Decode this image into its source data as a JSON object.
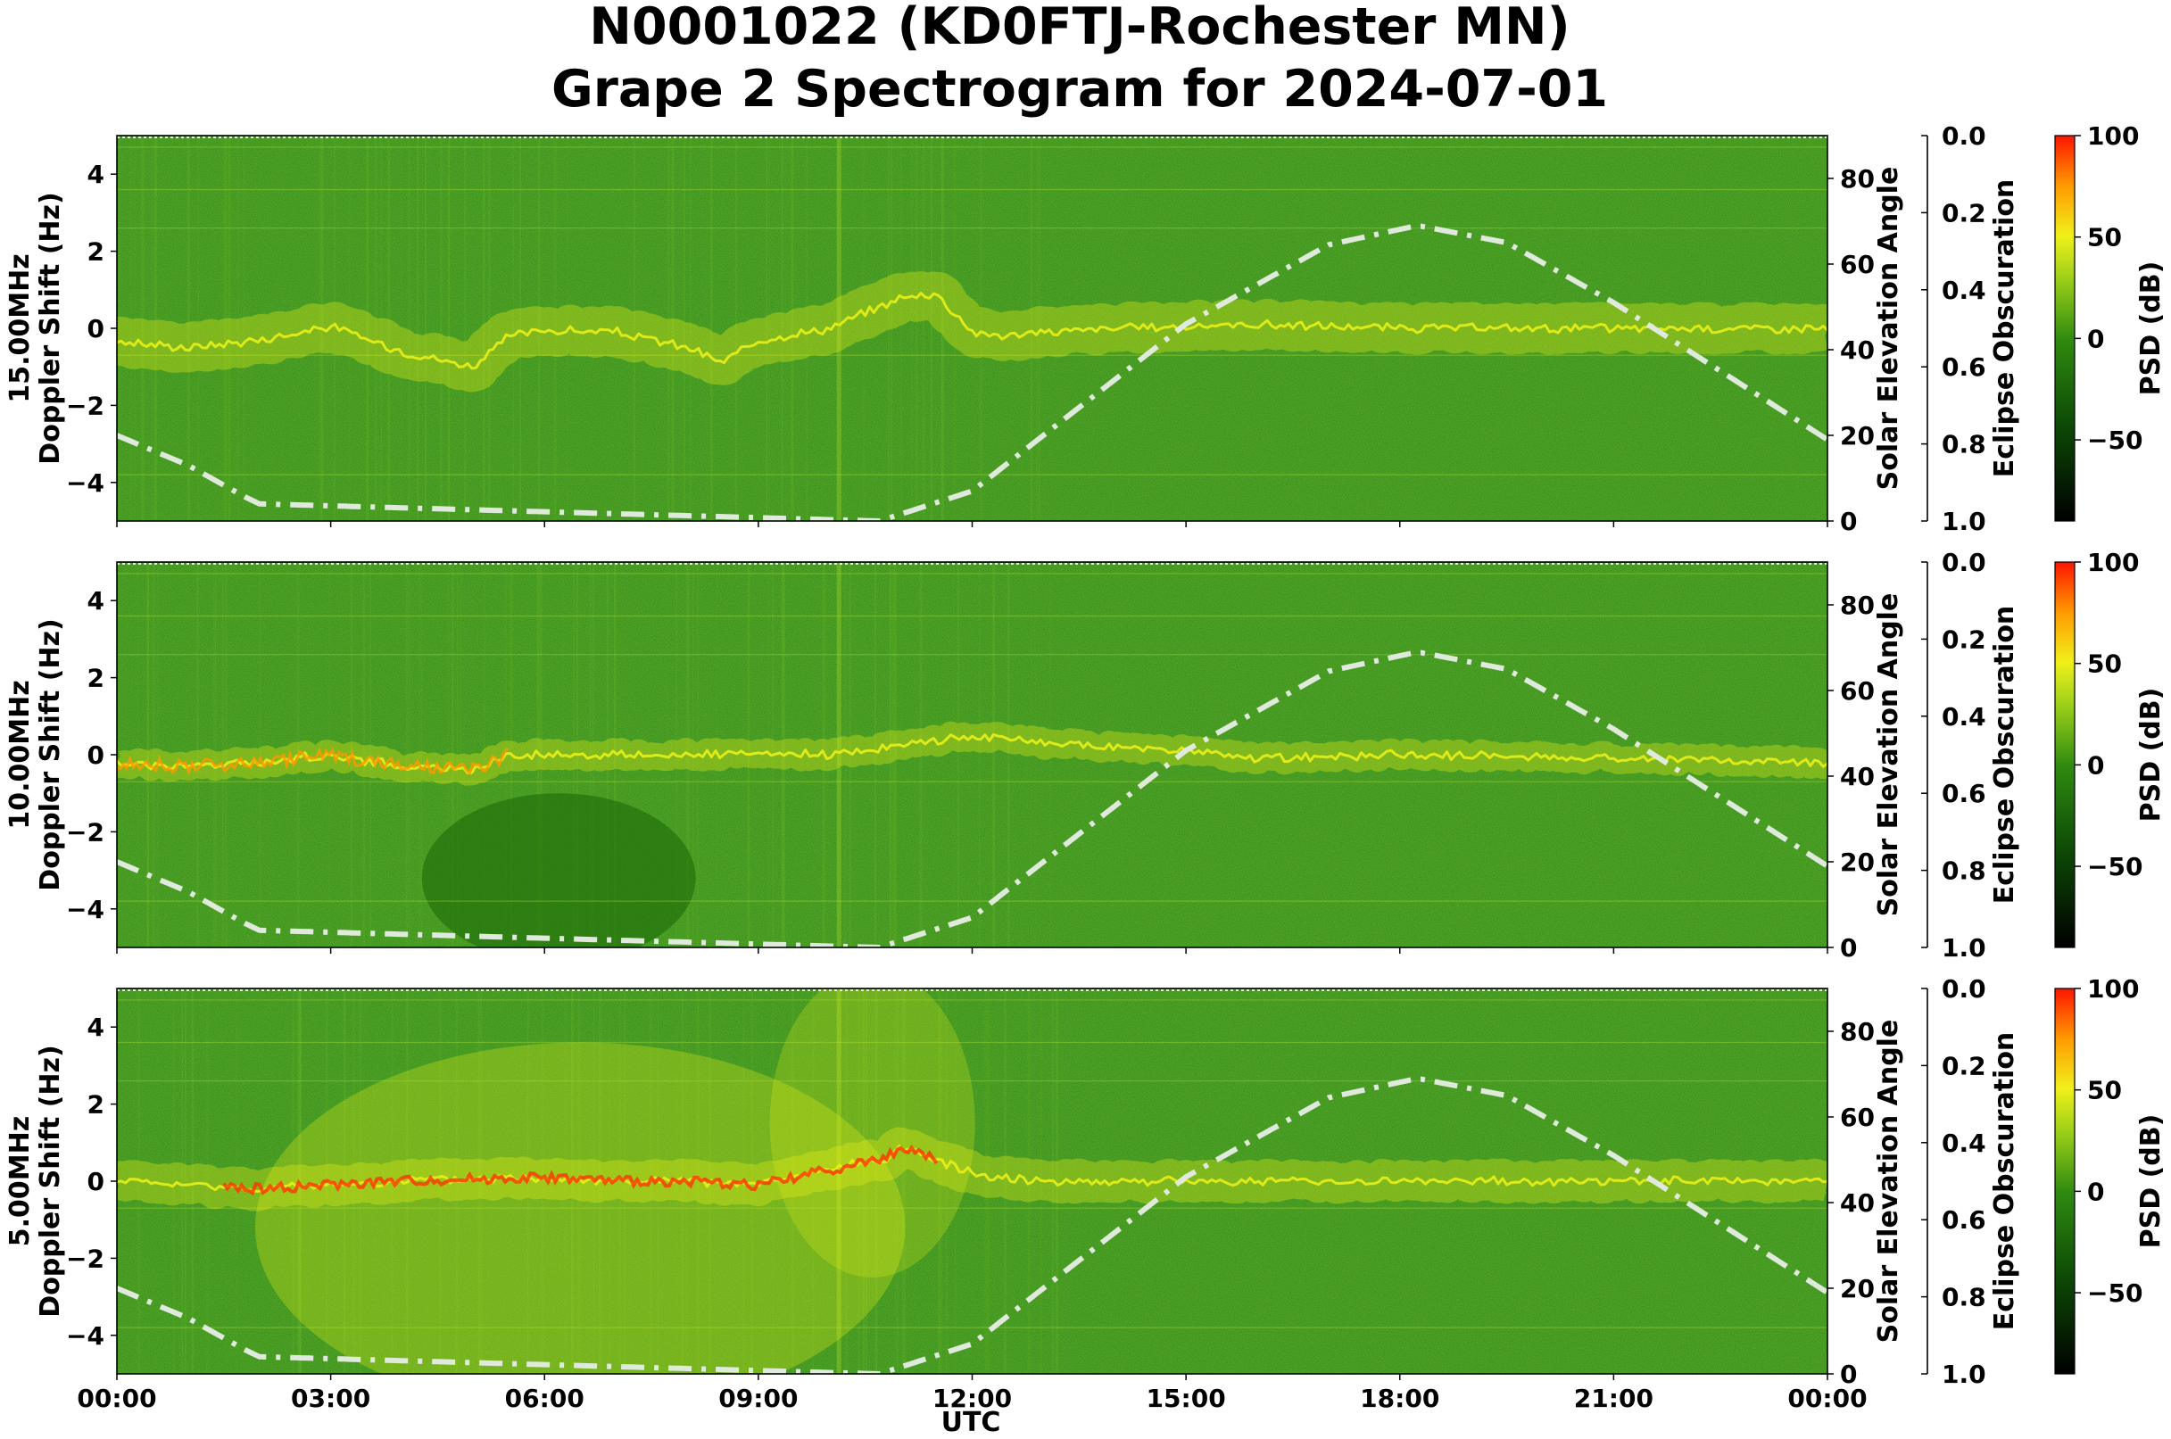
{
  "figure": {
    "title_line1": "N0001022 (KD0FTJ-Rochester MN)",
    "title_line2": "Grape 2 Spectrogram for 2024-07-01",
    "xlabel": "UTC"
  },
  "colors": {
    "background_green": "#2f8a10",
    "signal_yellow": "#e8ef18",
    "strong_red": "#ff3300",
    "solar_curve": "#dfe9dc"
  },
  "chart_data": [
    {
      "type": "heatmap",
      "panel": "15.00MHz",
      "ylabel_line1": "15.00MHz",
      "ylabel_line2": "Doppler Shift (Hz)",
      "xlim": [
        0,
        24
      ],
      "ylim": [
        -5,
        5
      ],
      "x_ticks": [
        "00:00",
        "03:00",
        "06:00",
        "09:00",
        "12:00",
        "15:00",
        "18:00",
        "21:00",
        "00:00"
      ],
      "y_ticks": [
        -4,
        -2,
        0,
        2,
        4
      ],
      "y2_label": "Solar Elevation Angle",
      "y2_ticks": [
        0,
        20,
        40,
        60,
        80
      ],
      "y2lim": [
        0,
        90
      ],
      "y3_label": "Eclipse Obscuration",
      "y3_ticks": [
        "0.0",
        "0.2",
        "0.4",
        "0.6",
        "0.8",
        "1.0"
      ],
      "colorbar_label": "PSD (dB)",
      "colorbar_ticks": [
        100,
        50,
        0,
        -50
      ],
      "clim": [
        -90,
        100
      ],
      "doppler_trace": [
        [
          0,
          -0.35
        ],
        [
          1,
          -0.5
        ],
        [
          2,
          -0.3
        ],
        [
          3,
          0.05
        ],
        [
          4,
          -0.6
        ],
        [
          5,
          -1.0
        ],
        [
          5.5,
          -0.2
        ],
        [
          6,
          -0.05
        ],
        [
          7,
          -0.1
        ],
        [
          8,
          -0.5
        ],
        [
          8.5,
          -0.9
        ],
        [
          9,
          -0.3
        ],
        [
          10,
          0
        ],
        [
          11,
          0.8
        ],
        [
          11.5,
          0.9
        ],
        [
          12,
          -0.1
        ],
        [
          12.5,
          -0.2
        ],
        [
          13,
          -0.1
        ],
        [
          14,
          0
        ],
        [
          16,
          0.1
        ],
        [
          18,
          0
        ],
        [
          24,
          0
        ]
      ],
      "trace_width_hz": 1.2,
      "solar_elevation": [
        [
          0,
          20
        ],
        [
          1,
          13
        ],
        [
          1.8,
          5.6
        ],
        [
          2,
          4
        ],
        [
          10.7,
          0
        ],
        [
          12,
          7
        ],
        [
          15,
          46
        ],
        [
          17,
          64.5
        ],
        [
          18.25,
          69
        ],
        [
          19.5,
          65
        ],
        [
          21,
          51
        ],
        [
          24,
          19
        ]
      ]
    },
    {
      "type": "heatmap",
      "panel": "10.00MHz",
      "ylabel_line1": "10.00MHz",
      "ylabel_line2": "Doppler Shift (Hz)",
      "xlim": [
        0,
        24
      ],
      "ylim": [
        -5,
        5
      ],
      "x_ticks": [
        "00:00",
        "03:00",
        "06:00",
        "09:00",
        "12:00",
        "15:00",
        "18:00",
        "21:00",
        "00:00"
      ],
      "y_ticks": [
        -4,
        -2,
        0,
        2,
        4
      ],
      "y2_label": "Solar Elevation Angle",
      "y2_ticks": [
        0,
        20,
        40,
        60,
        80
      ],
      "y2lim": [
        0,
        90
      ],
      "y3_label": "Eclipse Obscuration",
      "y3_ticks": [
        "0.0",
        "0.2",
        "0.4",
        "0.6",
        "0.8",
        "1.0"
      ],
      "colorbar_label": "PSD (dB)",
      "colorbar_ticks": [
        100,
        50,
        0,
        -50
      ],
      "clim": [
        -90,
        100
      ],
      "doppler_trace": [
        [
          0,
          -0.2
        ],
        [
          1,
          -0.3
        ],
        [
          2,
          -0.2
        ],
        [
          3,
          0
        ],
        [
          4,
          -0.3
        ],
        [
          5,
          -0.4
        ],
        [
          5.5,
          0
        ],
        [
          8,
          0
        ],
        [
          10,
          0
        ],
        [
          12,
          0.5
        ],
        [
          13,
          0.3
        ],
        [
          14,
          0.2
        ],
        [
          15,
          0.1
        ],
        [
          16,
          -0.1
        ],
        [
          18,
          0
        ],
        [
          20,
          -0.05
        ],
        [
          24,
          -0.2
        ]
      ],
      "trace_width_hz": 0.7,
      "solar_elevation": [
        [
          0,
          20
        ],
        [
          1,
          13
        ],
        [
          1.8,
          5.6
        ],
        [
          2,
          4
        ],
        [
          10.7,
          0
        ],
        [
          12,
          7
        ],
        [
          15,
          46
        ],
        [
          17,
          64.5
        ],
        [
          18.25,
          69
        ],
        [
          19.5,
          65
        ],
        [
          21,
          51
        ],
        [
          24,
          19
        ]
      ]
    },
    {
      "type": "heatmap",
      "panel": "5.00MHz",
      "ylabel_line1": "5.00MHz",
      "ylabel_line2": "Doppler Shift (Hz)",
      "xlim": [
        0,
        24
      ],
      "ylim": [
        -5,
        5
      ],
      "x_ticks": [
        "00:00",
        "03:00",
        "06:00",
        "09:00",
        "12:00",
        "15:00",
        "18:00",
        "21:00",
        "00:00"
      ],
      "y_ticks": [
        -4,
        -2,
        0,
        2,
        4
      ],
      "y2_label": "Solar Elevation Angle",
      "y2_ticks": [
        0,
        20,
        40,
        60,
        80
      ],
      "y2lim": [
        0,
        90
      ],
      "y3_label": "Eclipse Obscuration",
      "y3_ticks": [
        "0.0",
        "0.2",
        "0.4",
        "0.6",
        "0.8",
        "1.0"
      ],
      "colorbar_label": "PSD (dB)",
      "colorbar_ticks": [
        100,
        50,
        0,
        -50
      ],
      "clim": [
        -90,
        100
      ],
      "doppler_trace": [
        [
          0,
          0
        ],
        [
          2,
          -0.2
        ],
        [
          4,
          0
        ],
        [
          6,
          0.1
        ],
        [
          7,
          0
        ],
        [
          8,
          0
        ],
        [
          9,
          -0.1
        ],
        [
          10,
          0.3
        ],
        [
          10.8,
          0.6
        ],
        [
          11,
          0.9
        ],
        [
          12,
          0.2
        ],
        [
          13,
          0
        ],
        [
          24,
          0
        ]
      ],
      "trace_width_hz": 1.0,
      "solar_elevation": [
        [
          0,
          20
        ],
        [
          1,
          13
        ],
        [
          1.8,
          5.6
        ],
        [
          2,
          4
        ],
        [
          10.7,
          0
        ],
        [
          12,
          7
        ],
        [
          15,
          46
        ],
        [
          17,
          64.5
        ],
        [
          18.25,
          69
        ],
        [
          19.5,
          65
        ],
        [
          21,
          51
        ],
        [
          24,
          19
        ]
      ]
    }
  ]
}
